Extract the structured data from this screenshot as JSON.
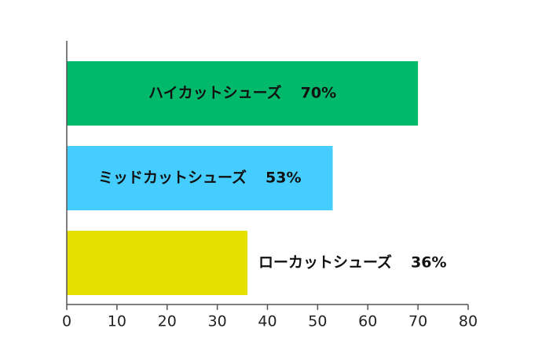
{
  "chart_data": {
    "type": "bar",
    "orientation": "horizontal",
    "categories": [
      "ハイカットシューズ",
      "ミッドカットシューズ",
      "ローカットシューズ"
    ],
    "values": [
      70,
      53,
      36
    ],
    "value_labels": [
      "70%",
      "53%",
      "36%"
    ],
    "colors": [
      "#00b96b",
      "#45cdff",
      "#e6e000"
    ],
    "xlim": [
      0,
      80
    ],
    "xticks": [
      0,
      10,
      20,
      30,
      40,
      50,
      60,
      70,
      80
    ]
  }
}
